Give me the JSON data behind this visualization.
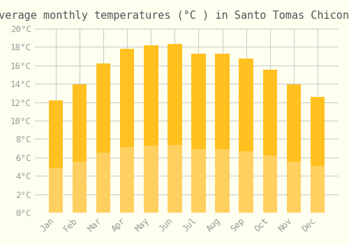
{
  "title": "Average monthly temperatures (°C ) in Santo Tomas Chiconautla",
  "months": [
    "Jan",
    "Feb",
    "Mar",
    "Apr",
    "May",
    "Jun",
    "Jul",
    "Aug",
    "Sep",
    "Oct",
    "Nov",
    "Dec"
  ],
  "values": [
    12.2,
    13.9,
    16.2,
    17.8,
    18.2,
    18.3,
    17.3,
    17.3,
    16.7,
    15.5,
    13.9,
    12.6
  ],
  "bar_color_top": "#FFC020",
  "bar_color_bottom": "#FFD060",
  "background_color": "#FFFFF0",
  "grid_color": "#CCCCCC",
  "text_color": "#999999",
  "title_color": "#555555",
  "ylim": [
    0,
    20
  ],
  "ytick_step": 2,
  "title_fontsize": 11,
  "tick_fontsize": 9
}
